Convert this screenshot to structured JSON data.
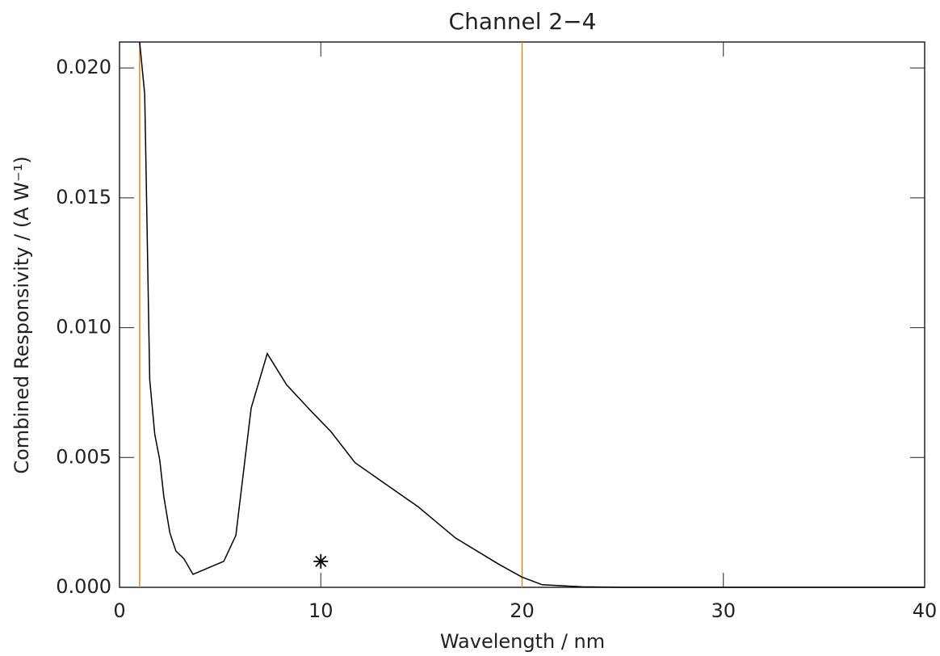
{
  "chart_data": {
    "type": "line",
    "title": "Channel 2−4",
    "xlabel": "Wavelength / nm",
    "ylabel": "Combined Responsivity / (A W⁻¹)",
    "xlim": [
      0,
      40
    ],
    "xticks": [
      0,
      10,
      20,
      30,
      40
    ],
    "ylim": [
      0,
      0.021
    ],
    "yticks": [
      {
        "value": 0,
        "label": "0.000"
      },
      {
        "value": 0.005,
        "label": "0.005"
      },
      {
        "value": 0.01,
        "label": "0.010"
      },
      {
        "value": 0.015,
        "label": "0.015"
      },
      {
        "value": 0.02,
        "label": "0.020"
      }
    ],
    "series": [
      {
        "color": "#000000",
        "x": [
          1,
          1.25,
          1.3,
          1.5,
          1.75,
          2,
          2.2,
          2.5,
          2.8,
          3.2,
          3.5,
          3.65,
          5.18,
          5.78,
          6.54,
          7.34,
          8.3,
          9.5,
          10.5,
          11.7,
          14.84,
          16.69,
          18.82,
          19.98,
          21,
          23,
          25,
          40
        ],
        "values": [
          0.021,
          0.019,
          0.0169,
          0.008,
          0.0059,
          0.0049,
          0.0035,
          0.0021,
          0.0014,
          0.0011,
          0.0007,
          0.0005,
          0.001,
          0.002,
          0.0069,
          0.009,
          0.0078,
          0.0068,
          0.006,
          0.0048,
          0.0031,
          0.0019,
          0.0009,
          0.0004,
          0.0001,
          2e-05,
          0,
          0
        ]
      }
    ],
    "vlines": {
      "color": "#e08a1e",
      "x": [
        1,
        20
      ]
    },
    "markers": [
      {
        "x": 10,
        "y": 0.001,
        "symbol": "asterisk",
        "color": "#000000"
      }
    ]
  }
}
